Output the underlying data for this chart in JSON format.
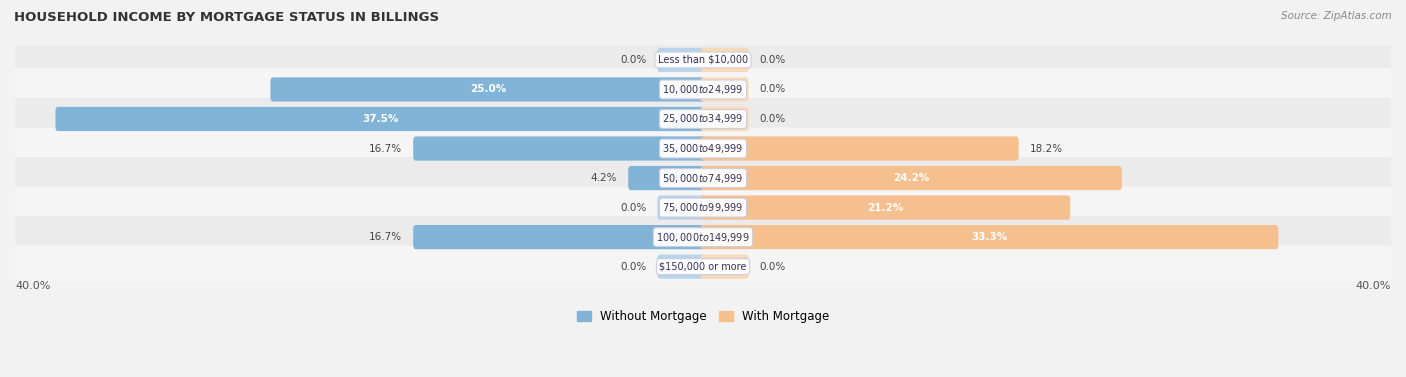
{
  "title": "HOUSEHOLD INCOME BY MORTGAGE STATUS IN BILLINGS",
  "source": "Source: ZipAtlas.com",
  "categories": [
    "Less than $10,000",
    "$10,000 to $24,999",
    "$25,000 to $34,999",
    "$35,000 to $49,999",
    "$50,000 to $74,999",
    "$75,000 to $99,999",
    "$100,000 to $149,999",
    "$150,000 or more"
  ],
  "without_mortgage": [
    0.0,
    25.0,
    37.5,
    16.7,
    4.2,
    0.0,
    16.7,
    0.0
  ],
  "with_mortgage": [
    0.0,
    0.0,
    0.0,
    18.2,
    24.2,
    21.2,
    33.3,
    0.0
  ],
  "color_without": "#82b4d8",
  "color_with": "#f5bf8e",
  "color_without_light": "#b8d4ea",
  "color_with_light": "#f8d9b8",
  "axis_limit": 40.0,
  "row_bg_even": "#ebebeb",
  "row_bg_odd": "#f5f5f5",
  "legend_without": "Without Mortgage",
  "legend_with": "With Mortgage",
  "min_bar_width": 2.5
}
